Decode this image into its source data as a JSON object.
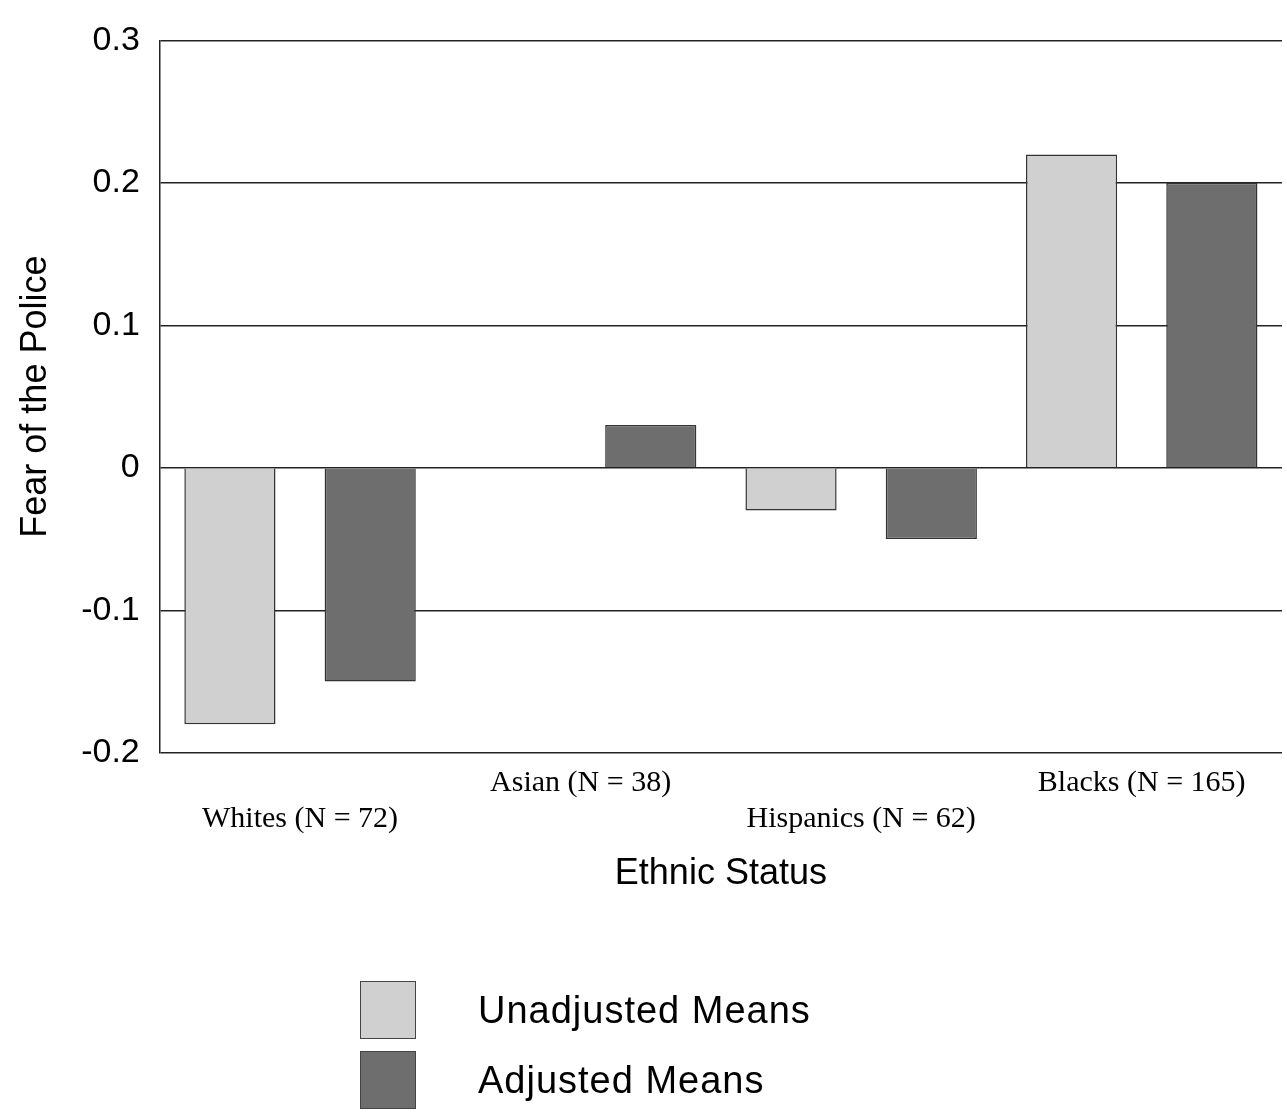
{
  "chart_data": {
    "type": "bar",
    "xlabel": "Ethnic Status",
    "ylabel": "Fear of the Police",
    "categories": [
      "Whites (N = 72)",
      "Asian (N = 38)",
      "Hispanics (N = 62)",
      "Blacks (N = 165)"
    ],
    "series": [
      {
        "name": "Unadjusted Means",
        "color": "#d0d0d0",
        "values": [
          -0.18,
          0,
          -0.03,
          0.22
        ]
      },
      {
        "name": "Adjusted Means",
        "color": "#6e6e6e",
        "values": [
          -0.15,
          0.03,
          -0.05,
          0.2
        ]
      }
    ],
    "ylim": [
      -0.2,
      0.3
    ],
    "yticks": [
      -0.2,
      -0.1,
      0,
      0.1,
      0.2,
      0.3
    ],
    "grid": "y",
    "legend": "bottom"
  }
}
